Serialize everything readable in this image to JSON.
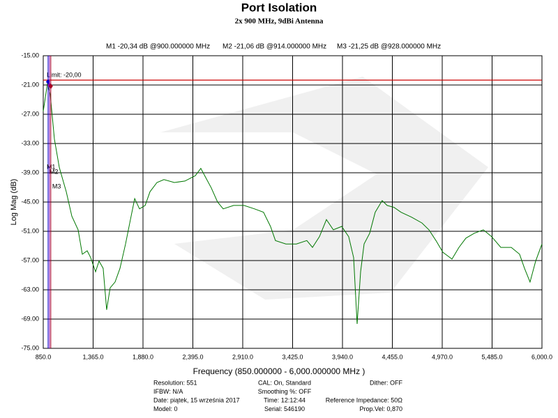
{
  "chart_data": {
    "type": "line",
    "title": "Port Isolation",
    "subtitle": "2x 900 MHz, 9dBi Antenna",
    "xlabel": "Frequency (850.000000 - 6,000.000000 MHz )",
    "ylabel": "Log Mag (dB)",
    "xlim": [
      850,
      6000
    ],
    "ylim": [
      -75,
      -15
    ],
    "grid": true,
    "xticks": [
      {
        "value": 850,
        "label": "850.0"
      },
      {
        "value": 1365,
        "label": "1,365.0"
      },
      {
        "value": 1880,
        "label": "1,880.0"
      },
      {
        "value": 2395,
        "label": "2,395.0"
      },
      {
        "value": 2910,
        "label": "2,910.0"
      },
      {
        "value": 3425,
        "label": "3,425.0"
      },
      {
        "value": 3940,
        "label": "3,940.0"
      },
      {
        "value": 4455,
        "label": "4,455.0"
      },
      {
        "value": 4970,
        "label": "4,970.0"
      },
      {
        "value": 5485,
        "label": "5,485.0"
      },
      {
        "value": 6000,
        "label": "6,000.0"
      }
    ],
    "yticks": [
      {
        "value": -15,
        "label": "-15.00"
      },
      {
        "value": -21,
        "label": "-21.00"
      },
      {
        "value": -27,
        "label": "-27.00"
      },
      {
        "value": -33,
        "label": "-33.00"
      },
      {
        "value": -39,
        "label": "-39.00"
      },
      {
        "value": -45,
        "label": "-45.00"
      },
      {
        "value": -51,
        "label": "-51.00"
      },
      {
        "value": -57,
        "label": "-57.00"
      },
      {
        "value": -63,
        "label": "-63.00"
      },
      {
        "value": -69,
        "label": "-69.00"
      },
      {
        "value": -75,
        "label": "-75.00"
      }
    ],
    "limit": {
      "value": -20,
      "label": "Limit: -20,00",
      "color": "#cc0000"
    },
    "x": [
      850,
      893,
      922,
      965,
      1016,
      1088,
      1145,
      1210,
      1253,
      1304,
      1340,
      1390,
      1426,
      1469,
      1505,
      1541,
      1592,
      1642,
      1700,
      1750,
      1794,
      1844,
      1902,
      1952,
      2024,
      2096,
      2204,
      2312,
      2420,
      2477,
      2528,
      2585,
      2650,
      2708,
      2816,
      2924,
      3032,
      3125,
      3197,
      3248,
      3356,
      3464,
      3572,
      3630,
      3702,
      3774,
      3846,
      3932,
      4004,
      4055,
      4091,
      4127,
      4163,
      4221,
      4278,
      4350,
      4401,
      4473,
      4545,
      4653,
      4761,
      4833,
      4905,
      4977,
      5071,
      5143,
      5215,
      5301,
      5395,
      5481,
      5575,
      5683,
      5769,
      5820,
      5877,
      5935,
      6000
    ],
    "series": [
      {
        "color": "#007700",
        "values": [
          -26.4,
          -20.7,
          -22.9,
          -32.1,
          -37.9,
          -42.9,
          -47.9,
          -50.7,
          -55.7,
          -55.0,
          -56.4,
          -59.3,
          -57.1,
          -58.6,
          -67.1,
          -62.6,
          -61.4,
          -58.6,
          -53.6,
          -48.6,
          -44.3,
          -46.4,
          -45.7,
          -42.9,
          -41.0,
          -40.4,
          -41.0,
          -40.7,
          -39.6,
          -38.1,
          -40.0,
          -42.1,
          -45.0,
          -46.4,
          -45.7,
          -45.7,
          -46.4,
          -47.1,
          -50.0,
          -52.9,
          -53.6,
          -53.6,
          -52.9,
          -54.3,
          -52.1,
          -48.6,
          -50.7,
          -50.0,
          -52.1,
          -56.4,
          -70.0,
          -59.3,
          -53.6,
          -51.4,
          -47.1,
          -44.7,
          -45.7,
          -46.1,
          -47.1,
          -48.1,
          -49.3,
          -50.7,
          -52.9,
          -55.3,
          -56.7,
          -54.3,
          -52.4,
          -51.4,
          -50.7,
          -52.1,
          -54.3,
          -54.3,
          -55.7,
          -58.6,
          -61.4,
          -57.1,
          -53.6
        ]
      }
    ],
    "markers": [
      {
        "name": "M1",
        "label": "M1 -20,34 dB @900.000000 MHz",
        "x": 900,
        "y": -20.34,
        "color": "#0000cc"
      },
      {
        "name": "M2",
        "label": "M2 -21,06 dB @914.000000 MHz",
        "x": 914,
        "y": -21.06,
        "color": "#8800aa"
      },
      {
        "name": "M3",
        "label": "M3 -21,25 dB @928.000000 MHz",
        "x": 928,
        "y": -21.25,
        "color": "#aa0022"
      }
    ],
    "footer": [
      [
        "Resolution: 551",
        "IFBW: N/A",
        "Date: piątek, 15 września 2017",
        "Model: 0"
      ],
      [
        "CAL: On, Standard",
        "Smoothing %:  OFF",
        "Time: 12:12:44",
        "Serial: 546190"
      ],
      [
        "Dither:  OFF",
        "",
        "Reference Impedance: 50Ω",
        "Prop.Vel: 0,870"
      ]
    ]
  }
}
